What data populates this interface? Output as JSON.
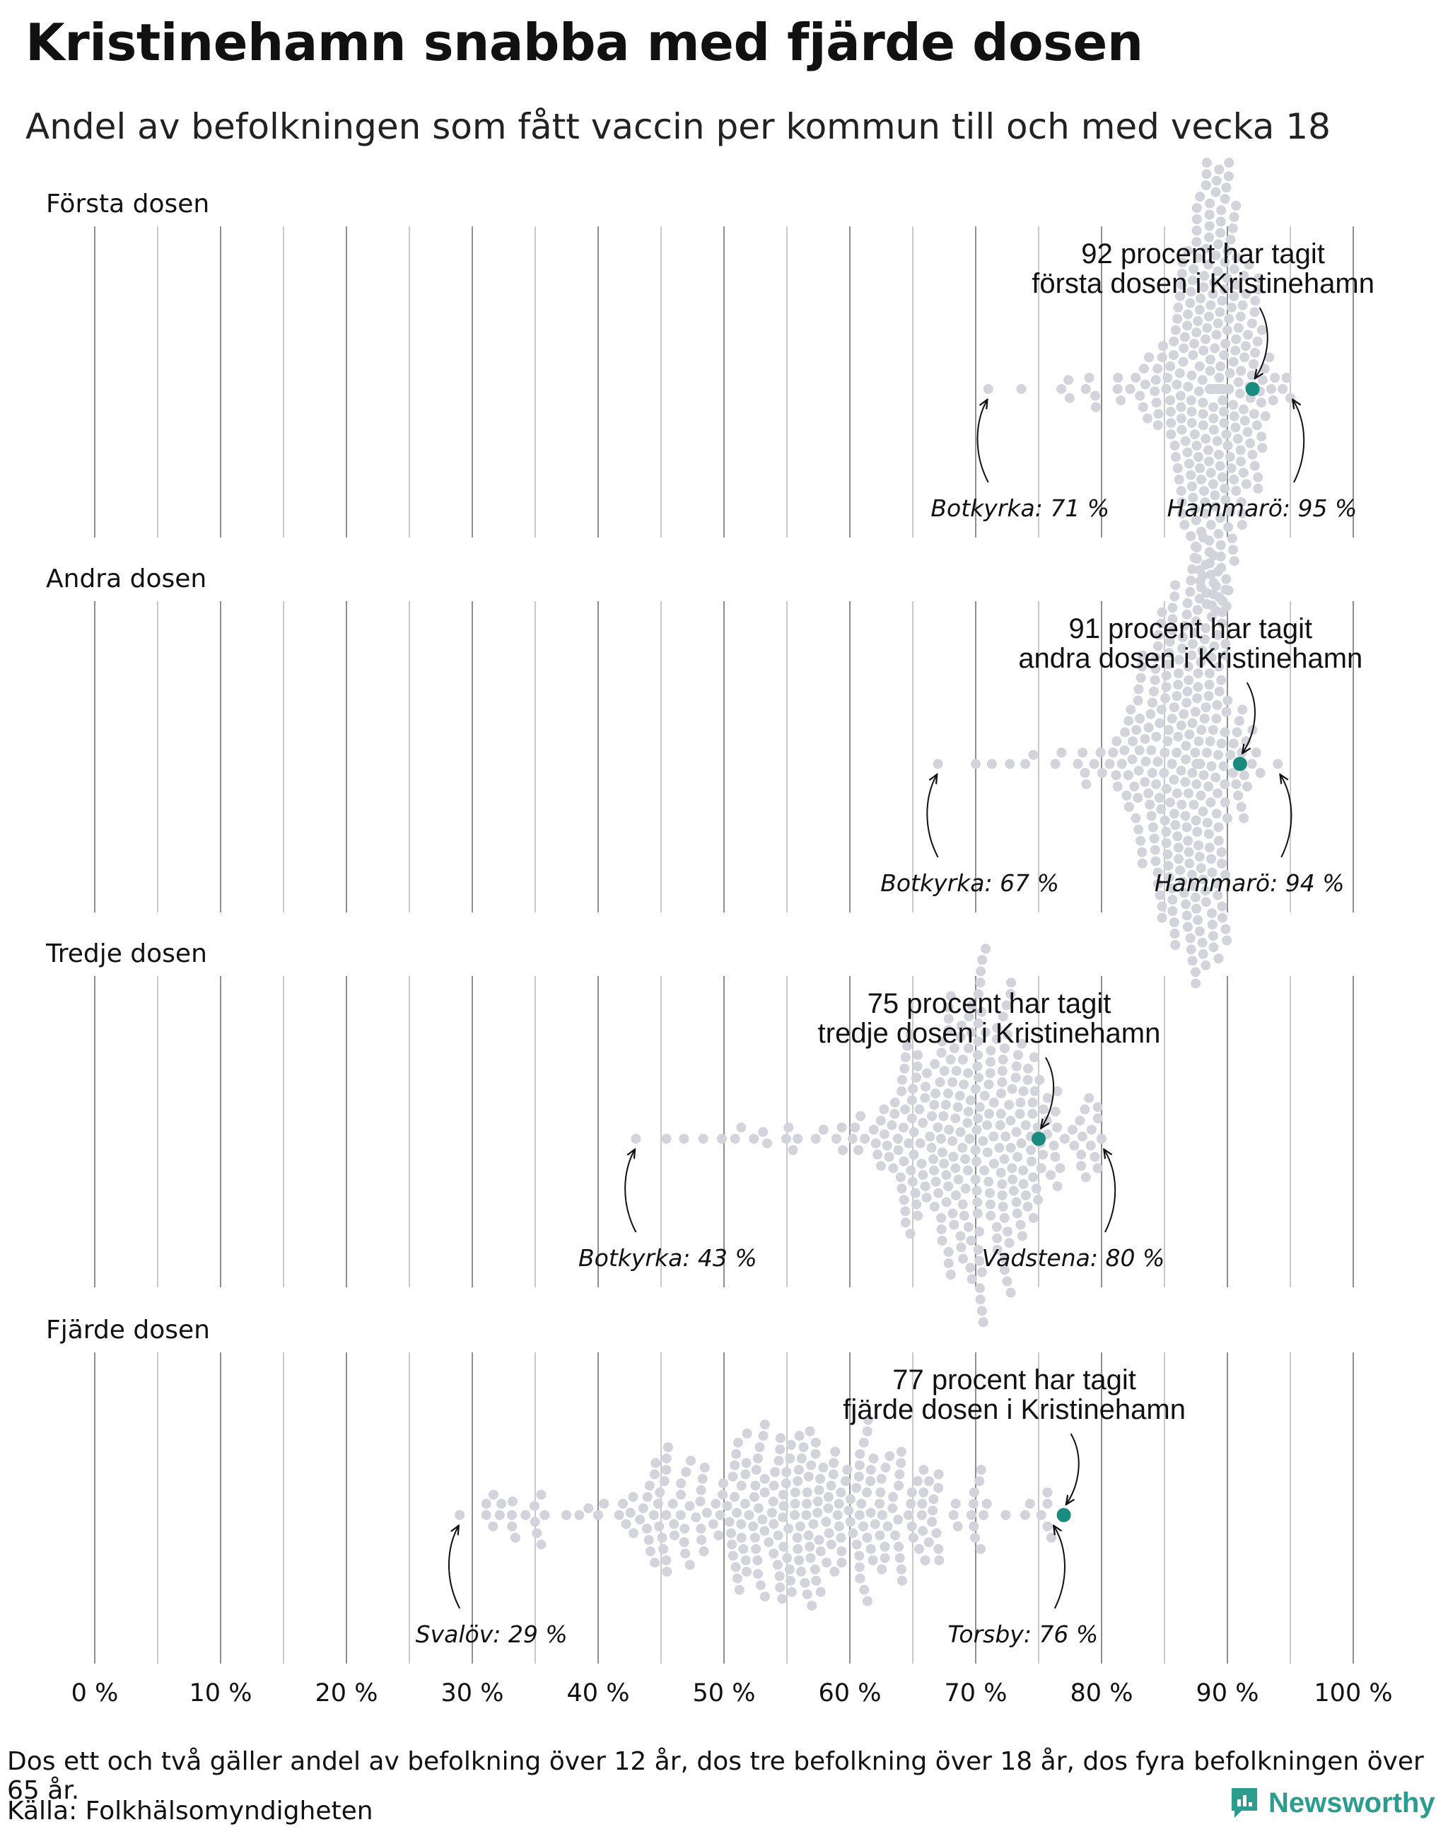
{
  "title": "Kristinehamn snabba med fjärde dosen",
  "subtitle": "Andel av befolkningen som fått vaccin per kommun till och med vecka 18",
  "footnote": "Dos ett och två gäller andel av befolkning över 12 år, dos tre befolkning över 18 år, dos fyra befolkningen över 65 år.",
  "source": "Källa: Folkhälsomyndigheten",
  "brand": "Newsworthy",
  "colors": {
    "highlight": "#1a8c7f",
    "dots": "#d3d3db",
    "gridline": "#9a9a9a",
    "brand": "#2a9d8f"
  },
  "chart_data": {
    "type": "scatter",
    "subtype": "beeswarm",
    "highlight_municipality": "Kristinehamn",
    "x_axis": {
      "min": 0,
      "max": 100,
      "ticks": [
        0,
        10,
        20,
        30,
        40,
        50,
        60,
        70,
        80,
        90,
        100
      ],
      "tick_labels": [
        "0 %",
        "10 %",
        "20 %",
        "30 %",
        "40 %",
        "50 %",
        "60 %",
        "70 %",
        "80 %",
        "90 %",
        "100 %"
      ],
      "minor_gridlines_every": 5
    },
    "panels": [
      {
        "label": "Första dosen",
        "annotation_line1": "92 procent har tagit",
        "annotation_line2": "första dosen i Kristinehamn",
        "highlight_value": 92,
        "min_label": "Botkyrka: 71 %",
        "min_value": 71,
        "max_label": "Hammarö: 95 %",
        "max_value": 95,
        "distribution": {
          "center": 89,
          "spread": 2.2,
          "count": 290
        }
      },
      {
        "label": "Andra dosen",
        "annotation_line1": "91 procent har tagit",
        "annotation_line2": "andra dosen i Kristinehamn",
        "highlight_value": 91,
        "min_label": "Botkyrka: 67 %",
        "min_value": 67,
        "max_label": "Hammarö: 94 %",
        "max_value": 94,
        "distribution": {
          "center": 87,
          "spread": 2.4,
          "count": 290
        }
      },
      {
        "label": "Tredje dosen",
        "annotation_line1": "75 procent har tagit",
        "annotation_line2": "tredje dosen i Kristinehamn",
        "highlight_value": 75,
        "min_label": "Botkyrka: 43 %",
        "min_value": 43,
        "max_label": "Vadstena: 80 %",
        "max_value": 80,
        "distribution": {
          "center": 70,
          "spread": 4.5,
          "count": 290
        }
      },
      {
        "label": "Fjärde dosen",
        "annotation_line1": "77 procent har tagit",
        "annotation_line2": "fjärde dosen i Kristinehamn",
        "highlight_value": 77,
        "min_label": "Svalöv: 29 %",
        "min_value": 29,
        "max_label": "Torsby: 76 %",
        "max_value": 76,
        "distribution": {
          "center": 56,
          "spread": 8.5,
          "count": 290
        }
      }
    ]
  }
}
